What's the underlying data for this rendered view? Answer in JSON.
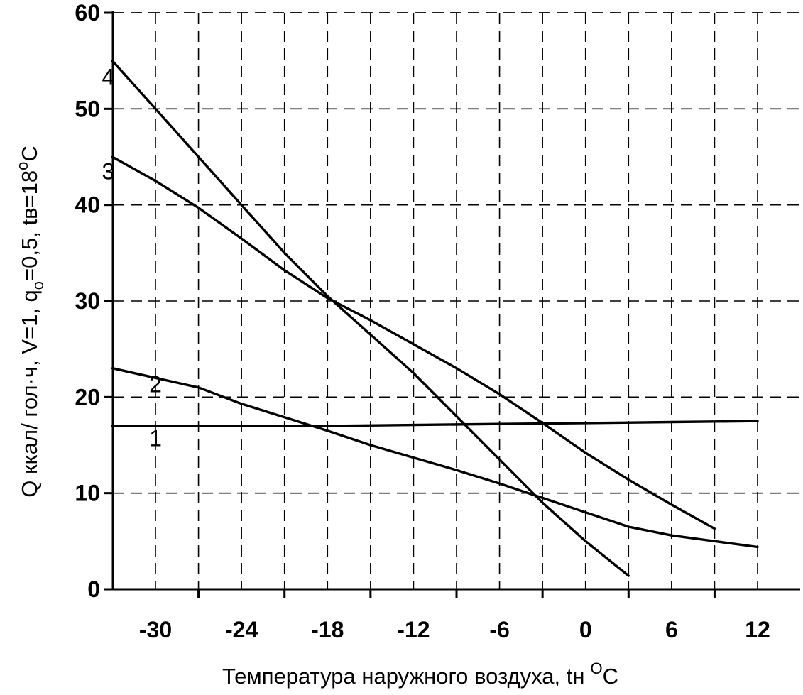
{
  "chart_data": {
    "type": "line",
    "xlabel": "Температура наружного воздуха, tн",
    "xlabel_unit_sup": "O",
    "xlabel_unit": "C",
    "ylabel_parts": [
      {
        "text": "Q ккал/ гол·ч,    V=1, q",
        "sup": false,
        "sub": false
      },
      {
        "text": "o",
        "sup": false,
        "sub": true
      },
      {
        "text": "=0,5, tв=18",
        "sup": false,
        "sub": false
      },
      {
        "text": "o",
        "sup": true,
        "sub": false
      },
      {
        "text": "C",
        "sup": false,
        "sub": false
      }
    ],
    "xlim": [
      -30,
      12
    ],
    "ylim": [
      0,
      60
    ],
    "x_ticks": [
      -30,
      -24,
      -18,
      -12,
      -6,
      0,
      6,
      12
    ],
    "x_tick_labels": [
      "-30",
      "-24",
      "-18",
      "-12",
      "-6",
      "0",
      "6",
      "12"
    ],
    "y_ticks": [
      0,
      10,
      20,
      30,
      40,
      50,
      60
    ],
    "y_tick_labels": [
      "0",
      "10",
      "20",
      "30",
      "40",
      "50",
      "60"
    ],
    "grid": true,
    "series": [
      {
        "name": "1",
        "label_at": [
          -30,
          15.7
        ],
        "points": [
          [
            -33,
            17
          ],
          [
            -27,
            17
          ],
          [
            -18,
            17
          ],
          [
            -12,
            17.1
          ],
          [
            -6,
            17.2
          ],
          [
            0,
            17.3
          ],
          [
            6,
            17.4
          ],
          [
            12,
            17.5
          ]
        ]
      },
      {
        "name": "2",
        "label_at": [
          -30,
          21.3
        ],
        "points": [
          [
            -33,
            23
          ],
          [
            -30,
            22
          ],
          [
            -27,
            21
          ],
          [
            -24,
            19.3
          ],
          [
            -21,
            17.9
          ],
          [
            -18,
            16.5
          ],
          [
            -15,
            15
          ],
          [
            -12,
            13.7
          ],
          [
            -9,
            12.4
          ],
          [
            -6,
            11
          ],
          [
            -3,
            9.5
          ],
          [
            0,
            8
          ],
          [
            3,
            6.5
          ],
          [
            6,
            5.6
          ],
          [
            9,
            5
          ],
          [
            12,
            4.4
          ]
        ]
      },
      {
        "name": "3",
        "label_at": [
          -33.3,
          43.5
        ],
        "points": [
          [
            -33,
            45
          ],
          [
            -30,
            42.5
          ],
          [
            -27,
            39.7
          ],
          [
            -24,
            36.5
          ],
          [
            -21,
            33.2
          ],
          [
            -18,
            30.3
          ],
          [
            -15,
            28
          ],
          [
            -12,
            25.5
          ],
          [
            -9,
            23
          ],
          [
            -6,
            20.3
          ],
          [
            -3,
            17.3
          ],
          [
            0,
            14.2
          ],
          [
            3,
            11.4
          ],
          [
            6,
            8.8
          ],
          [
            9,
            6.3
          ]
        ]
      },
      {
        "name": "4",
        "label_at": [
          -33.3,
          53.3
        ],
        "points": [
          [
            -33,
            55
          ],
          [
            -30,
            50
          ],
          [
            -27,
            45
          ],
          [
            -24,
            40
          ],
          [
            -21,
            35
          ],
          [
            -18,
            30.5
          ],
          [
            -15,
            26.5
          ],
          [
            -12,
            22.5
          ],
          [
            -9,
            18
          ],
          [
            -6,
            13.5
          ],
          [
            -3,
            9
          ],
          [
            0,
            5
          ],
          [
            3,
            1.4
          ]
        ]
      }
    ]
  }
}
